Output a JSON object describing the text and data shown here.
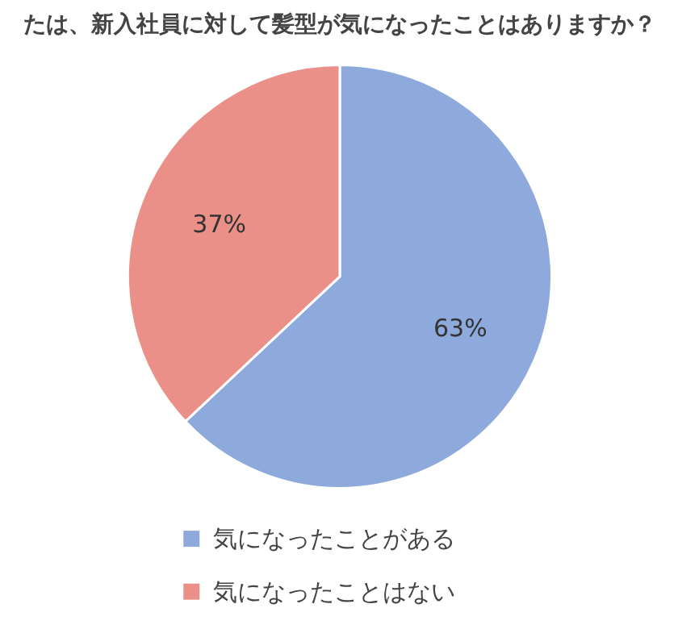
{
  "chart_data": {
    "type": "pie",
    "title": "たは、新入社員に対して髪型が気になったことはありますか？",
    "categories": [
      "気になったことがある",
      "気になったことはない"
    ],
    "values": [
      63,
      37
    ],
    "colors": [
      "#8eaadc",
      "#ea9088"
    ],
    "value_labels": [
      "63%",
      "37%"
    ],
    "legend": "bottom"
  }
}
